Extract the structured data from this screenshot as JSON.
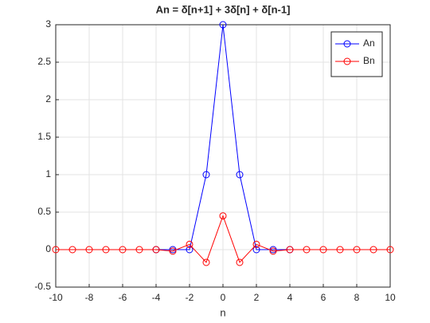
{
  "chart_data": {
    "type": "line",
    "title": "An = δ[n+1] + 3δ[n] + δ[n-1]",
    "xlabel": "n",
    "xlim": [
      -10,
      10
    ],
    "xticks": [
      -10,
      -8,
      -6,
      -4,
      -2,
      0,
      2,
      4,
      6,
      8,
      10
    ],
    "ylim": [
      -0.5,
      3
    ],
    "yticks": [
      -0.5,
      0,
      0.5,
      1,
      1.5,
      2,
      2.5,
      3
    ],
    "grid": true,
    "legend": "top-right",
    "series": [
      {
        "name": "An",
        "color": "#0000ff",
        "x": [
          -4,
          -3,
          -2,
          -1,
          0,
          1,
          2,
          3,
          4
        ],
        "values": [
          0,
          0,
          0,
          1,
          3,
          1,
          0,
          0,
          0
        ]
      },
      {
        "name": "Bn",
        "color": "#ff0000",
        "x": [
          -10,
          -9,
          -8,
          -7,
          -6,
          -5,
          -4,
          -3,
          -2,
          -1,
          0,
          1,
          2,
          3,
          4,
          5,
          6,
          7,
          8,
          9,
          10
        ],
        "values": [
          0,
          0,
          0,
          0,
          0,
          0,
          0,
          -0.02,
          0.07,
          -0.17,
          0.45,
          -0.17,
          0.07,
          -0.02,
          0,
          0,
          0,
          0,
          0,
          0,
          0
        ]
      }
    ]
  }
}
